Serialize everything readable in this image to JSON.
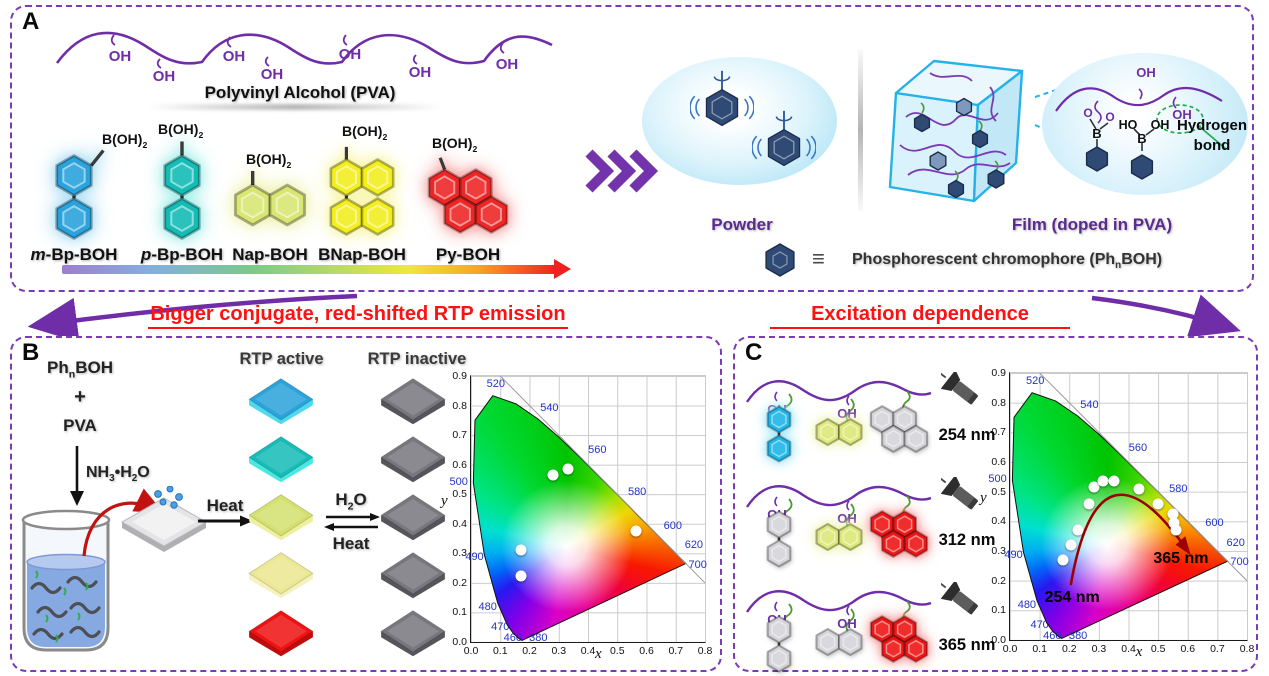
{
  "figure": {
    "panel_border_color": "#7a3bb5",
    "accent_purple": "#6f2da8",
    "header_red": "#ff1111"
  },
  "panel_a": {
    "label": "A",
    "pva_title": "Polyvinyl Alcohol (PVA)",
    "oh": "OH",
    "boh2_base": "B(OH)",
    "boh2_sub": "2",
    "molecules": [
      {
        "prefix": "m",
        "rest": "-Bp-BOH",
        "color": "#2aa2dc",
        "glow": "#a8ddf4"
      },
      {
        "prefix": "p",
        "rest": "-Bp-BOH",
        "color": "#14bcb6",
        "glow": "#9deee9"
      },
      {
        "prefix": "",
        "rest": "Nap-BOH",
        "color": "#d9e674",
        "glow": "#eef3ab"
      },
      {
        "prefix": "",
        "rest": "BNap-BOH",
        "color": "#f2ee20",
        "glow": "#f8f59e"
      },
      {
        "prefix": "",
        "rest": "Py-BOH",
        "color": "#ee2626",
        "glow": "#f8a2a2"
      }
    ],
    "powder_label": "Powder",
    "film_label": "Film (doped in PVA)",
    "hydrogen_bond_line1": "Hydrogen",
    "hydrogen_bond_line2": "bond",
    "callout_oh": "OH",
    "callout_ho": "HO",
    "callout_b": "B",
    "callout_o": "O",
    "legend_equiv": "≡",
    "legend_pre": "Phosphorescent chromophore (Ph",
    "legend_sub": "n",
    "legend_post": "BOH)"
  },
  "headers": {
    "left": "Bigger conjugate, red-shifted RTP emission",
    "right": "Excitation dependence"
  },
  "panel_b": {
    "label": "B",
    "reagent_p1": "Ph",
    "reagent_sub": "n",
    "reagent_p2": "BOH",
    "plus": "+",
    "pva": "PVA",
    "ammonia_p1": "NH",
    "ammonia_s1": "3",
    "ammonia_p2": "•H",
    "ammonia_s2": "2",
    "ammonia_p3": "O",
    "heat": "Heat",
    "water_p1": "H",
    "water_s1": "2",
    "water_p2": "O",
    "heat_reverse": "Heat",
    "rtp_active": "RTP active",
    "rtp_inactive": "RTP inactive",
    "active_films": [
      {
        "top": "#2aa2da",
        "edge": "#4fd8ee"
      },
      {
        "top": "#16bcb6",
        "edge": "#4ae8e0"
      },
      {
        "top": "#d3e06e",
        "edge": "#eef0a0"
      },
      {
        "top": "#ece892",
        "edge": "#f6f2c0"
      },
      {
        "top": "#ee1212",
        "edge": "#c00c0c"
      }
    ],
    "inactive_film": {
      "top": "#77777e",
      "edge": "#55555b"
    }
  },
  "panel_c": {
    "label": "C",
    "oh": "OH",
    "rows": [
      {
        "nm": "254 nm",
        "bp": {
          "color": "#1fb6e8",
          "glow": "#9ae6f8"
        },
        "nap": {
          "color": "#dce878",
          "glow": "#eef3ae"
        },
        "py": {
          "color": "#d4d4da",
          "glow": ""
        }
      },
      {
        "nm": "312 nm",
        "bp": {
          "color": "#d4d4da",
          "glow": ""
        },
        "nap": {
          "color": "#dce878",
          "glow": "#eef3ae"
        },
        "py": {
          "color": "#ee1616",
          "glow": "#f89a9a"
        }
      },
      {
        "nm": "365 nm",
        "bp": {
          "color": "#d4d4da",
          "glow": ""
        },
        "nap": {
          "color": "#d4d4da",
          "glow": ""
        },
        "py": {
          "color": "#ee1616",
          "glow": "#f89a9a"
        }
      }
    ]
  },
  "chart_data": [
    {
      "type": "scatter",
      "title": "",
      "xlabel": "x",
      "ylabel": "y",
      "xlim": [
        0,
        0.8
      ],
      "ylim": [
        0,
        0.9
      ],
      "grid": true,
      "x_ticks": [
        "0.0",
        "0.1",
        "0.2",
        "0.3",
        "0.4",
        "0.5",
        "0.6",
        "0.7",
        "0.8"
      ],
      "y_ticks": [
        "0.0",
        "0.1",
        "0.2",
        "0.3",
        "0.4",
        "0.5",
        "0.6",
        "0.7",
        "0.8",
        "0.9"
      ],
      "wavelength_labels": [
        {
          "label": "520",
          "x": 0.085,
          "y": 0.872
        },
        {
          "label": "540",
          "x": 0.268,
          "y": 0.792
        },
        {
          "label": "560",
          "x": 0.432,
          "y": 0.648
        },
        {
          "label": "580",
          "x": 0.568,
          "y": 0.508
        },
        {
          "label": "600",
          "x": 0.69,
          "y": 0.394
        },
        {
          "label": "620",
          "x": 0.762,
          "y": 0.328
        },
        {
          "label": "700",
          "x": 0.775,
          "y": 0.262
        },
        {
          "label": "500",
          "x": -0.042,
          "y": 0.543
        },
        {
          "label": "490",
          "x": 0.012,
          "y": 0.287
        },
        {
          "label": "480",
          "x": 0.057,
          "y": 0.118
        },
        {
          "label": "470",
          "x": 0.1,
          "y": 0.052
        },
        {
          "label": "460",
          "x": 0.143,
          "y": 0.015
        },
        {
          "label": "380",
          "x": 0.23,
          "y": 0.012
        }
      ],
      "points": [
        {
          "x": 0.17,
          "y": 0.225
        },
        {
          "x": 0.17,
          "y": 0.31
        },
        {
          "x": 0.28,
          "y": 0.565
        },
        {
          "x": 0.33,
          "y": 0.585
        },
        {
          "x": 0.565,
          "y": 0.375
        }
      ]
    },
    {
      "type": "scatter",
      "title": "",
      "xlabel": "x",
      "ylabel": "y",
      "xlim": [
        0,
        0.8
      ],
      "ylim": [
        0,
        0.9
      ],
      "grid": true,
      "x_ticks": [
        "0.0",
        "0.1",
        "0.2",
        "0.3",
        "0.4",
        "0.5",
        "0.6",
        "0.7",
        "0.8"
      ],
      "y_ticks": [
        "0.0",
        "0.1",
        "0.2",
        "0.3",
        "0.4",
        "0.5",
        "0.6",
        "0.7",
        "0.8",
        "0.9"
      ],
      "wavelength_labels": [
        {
          "label": "520",
          "x": 0.085,
          "y": 0.872
        },
        {
          "label": "540",
          "x": 0.268,
          "y": 0.792
        },
        {
          "label": "560",
          "x": 0.432,
          "y": 0.648
        },
        {
          "label": "580",
          "x": 0.568,
          "y": 0.508
        },
        {
          "label": "600",
          "x": 0.69,
          "y": 0.394
        },
        {
          "label": "620",
          "x": 0.762,
          "y": 0.328
        },
        {
          "label": "700",
          "x": 0.775,
          "y": 0.262
        },
        {
          "label": "500",
          "x": -0.042,
          "y": 0.543
        },
        {
          "label": "490",
          "x": 0.012,
          "y": 0.287
        },
        {
          "label": "480",
          "x": 0.057,
          "y": 0.118
        },
        {
          "label": "470",
          "x": 0.1,
          "y": 0.052
        },
        {
          "label": "460",
          "x": 0.143,
          "y": 0.015
        },
        {
          "label": "380",
          "x": 0.23,
          "y": 0.012
        }
      ],
      "points": [
        {
          "x": 0.18,
          "y": 0.27
        },
        {
          "x": 0.205,
          "y": 0.32
        },
        {
          "x": 0.23,
          "y": 0.37
        },
        {
          "x": 0.265,
          "y": 0.46
        },
        {
          "x": 0.285,
          "y": 0.515
        },
        {
          "x": 0.315,
          "y": 0.535
        },
        {
          "x": 0.35,
          "y": 0.535
        },
        {
          "x": 0.435,
          "y": 0.51
        },
        {
          "x": 0.5,
          "y": 0.46
        },
        {
          "x": 0.55,
          "y": 0.425
        },
        {
          "x": 0.555,
          "y": 0.395
        },
        {
          "x": 0.56,
          "y": 0.37
        }
      ],
      "arrow": {
        "color": "#9c0000",
        "start": {
          "x": 0.205,
          "y": 0.185
        },
        "control": {
          "x": 0.3,
          "y": 0.73
        },
        "end": {
          "x": 0.6,
          "y": 0.3
        }
      },
      "annotations": [
        {
          "text": "254 nm",
          "x": 0.21,
          "y": 0.14
        },
        {
          "text": "365 nm",
          "x": 0.577,
          "y": 0.273
        }
      ]
    }
  ]
}
